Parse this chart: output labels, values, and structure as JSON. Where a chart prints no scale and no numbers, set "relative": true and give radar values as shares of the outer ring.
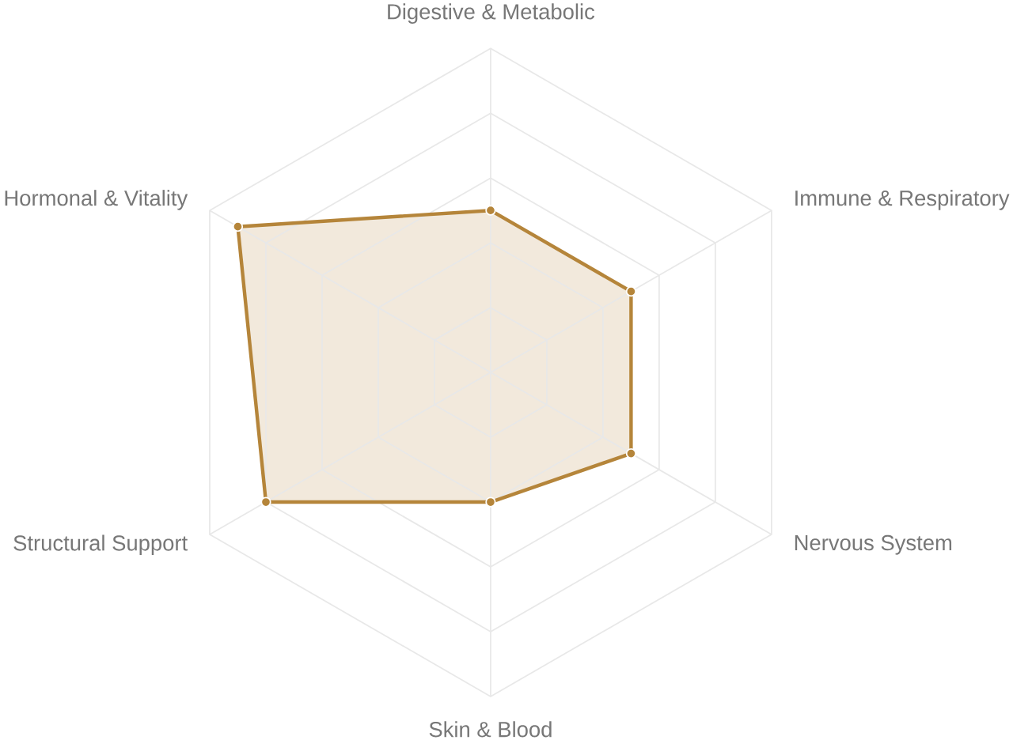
{
  "chart_data": {
    "type": "radar",
    "relative": true,
    "grid": true,
    "marker": "circle",
    "categories": [
      "Digestive & Metabolic",
      "Immune & Respiratory",
      "Nervous System",
      "Skin & Blood",
      "Structural Support",
      "Hormonal & Vitality"
    ],
    "series": [
      {
        "color": "#b5853a",
        "values": [
          0.5,
          0.5,
          0.5,
          0.4,
          0.8,
          0.9
        ]
      }
    ]
  }
}
